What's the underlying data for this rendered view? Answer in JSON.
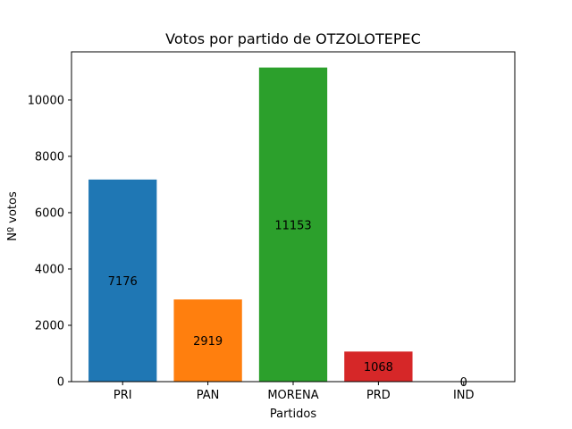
{
  "chart_data": {
    "type": "bar",
    "title": "Votos por partido de OTZOLOTEPEC",
    "xlabel": "Partidos",
    "ylabel": "Nº votos",
    "categories": [
      "PRI",
      "PAN",
      "MORENA",
      "PRD",
      "IND"
    ],
    "values": [
      7176,
      2919,
      11153,
      1068,
      0
    ],
    "colors": [
      "#1f77b4",
      "#ff7f0e",
      "#2ca02c",
      "#d62728",
      "#9467bd"
    ],
    "ylim": [
      0,
      11711
    ],
    "yticks": [
      0,
      2000,
      4000,
      6000,
      8000,
      10000
    ],
    "ytick_labels": [
      "0",
      "2000",
      "4000",
      "6000",
      "8000",
      "10000"
    ],
    "grid": false,
    "legend": "none"
  }
}
